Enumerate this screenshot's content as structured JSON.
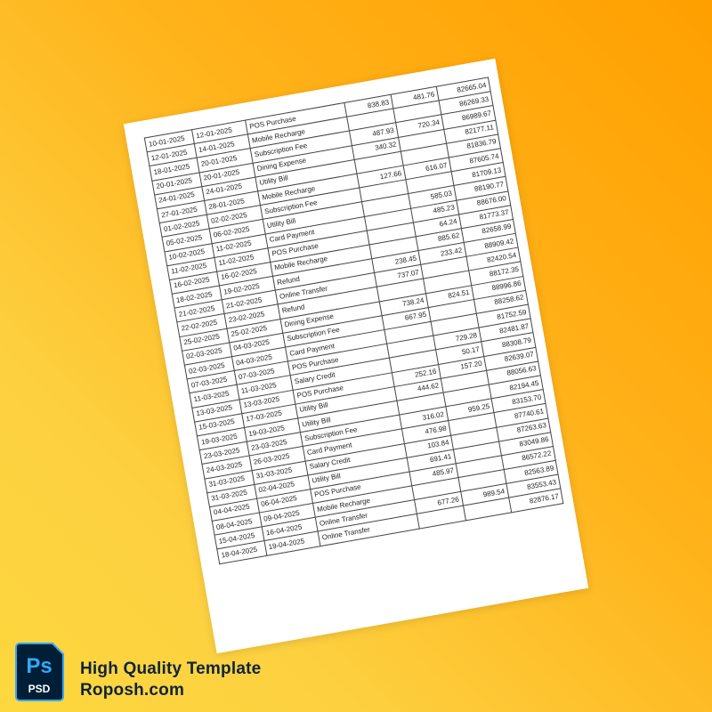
{
  "colors": {
    "bg_top_right": "#ff9f00",
    "bg_bottom_left": "#fdd83e",
    "logo_bg": "#001e36",
    "logo_accent": "#31a8ff",
    "brand_text": "#0d2340"
  },
  "statement": {
    "rows": [
      [
        "10-01-2025",
        "12-01-2025",
        "POS Purchase",
        "838.83",
        "481.76",
        "82665.04"
      ],
      [
        "12-01-2025",
        "14-01-2025",
        "Mobile Recharge",
        "",
        "",
        "86269.33"
      ],
      [
        "18-01-2025",
        "20-01-2025",
        "Subscription Fee",
        "487.93",
        "720.34",
        "86989.67"
      ],
      [
        "20-01-2025",
        "20-01-2025",
        "Dining Expense",
        "340.32",
        "",
        "82177.11"
      ],
      [
        "24-01-2025",
        "24-01-2025",
        "Utility Bill",
        "",
        "",
        "81836.79"
      ],
      [
        "27-01-2025",
        "28-01-2025",
        "Mobile Recharge",
        "127.66",
        "616.07",
        "87605.74"
      ],
      [
        "01-02-2025",
        "02-02-2025",
        "Subscription Fee",
        "",
        "",
        "81709.13"
      ],
      [
        "05-02-2025",
        "06-02-2025",
        "Utility Bill",
        "",
        "585.03",
        "88190.77"
      ],
      [
        "10-02-2025",
        "11-02-2025",
        "Card Payment",
        "",
        "485.23",
        "88676.00"
      ],
      [
        "11-02-2025",
        "11-02-2025",
        "POS Purchase",
        "",
        "64.24",
        "81773.37"
      ],
      [
        "16-02-2025",
        "16-02-2025",
        "Mobile Recharge",
        "",
        "885.62",
        "82658.99"
      ],
      [
        "18-02-2025",
        "19-02-2025",
        "Refund",
        "238.45",
        "233.42",
        "88909.42"
      ],
      [
        "21-02-2025",
        "21-02-2025",
        "Online Transfer",
        "737.07",
        "",
        "82420.54"
      ],
      [
        "22-02-2025",
        "23-02-2025",
        "Refund",
        "",
        "",
        "88172.35"
      ],
      [
        "25-02-2025",
        "25-02-2025",
        "Dining Expense",
        "738.24",
        "824.51",
        "88996.86"
      ],
      [
        "02-03-2025",
        "04-03-2025",
        "Subscription Fee",
        "667.95",
        "",
        "88258.62"
      ],
      [
        "02-03-2025",
        "04-03-2025",
        "Card Payment",
        "",
        "",
        "81752.59"
      ],
      [
        "07-03-2025",
        "07-03-2025",
        "POS Purchase",
        "",
        "729.28",
        "82481.87"
      ],
      [
        "11-03-2025",
        "11-03-2025",
        "Salary Credit",
        "",
        "50.17",
        "88308.79"
      ],
      [
        "13-03-2025",
        "13-03-2025",
        "POS Purchase",
        "252.16",
        "157.20",
        "82639.07"
      ],
      [
        "15-03-2025",
        "17-03-2025",
        "Utility Bill",
        "444.62",
        "",
        "88056.63"
      ],
      [
        "19-03-2025",
        "19-03-2025",
        "Utility Bill",
        "",
        "",
        "82194.45"
      ],
      [
        "23-03-2025",
        "23-03-2025",
        "Subscription Fee",
        "316.02",
        "959.25",
        "83153.70"
      ],
      [
        "24-03-2025",
        "26-03-2025",
        "Card Payment",
        "476.98",
        "",
        "87740.61"
      ],
      [
        "31-03-2025",
        "31-03-2025",
        "Salary Credit",
        "103.84",
        "",
        "87263.63"
      ],
      [
        "31-03-2025",
        "02-04-2025",
        "Utility Bill",
        "691.41",
        "",
        "83049.86"
      ],
      [
        "04-04-2025",
        "06-04-2025",
        "POS Purchase",
        "485.97",
        "",
        "86572.22"
      ],
      [
        "08-04-2025",
        "09-04-2025",
        "Mobile Recharge",
        "",
        "",
        "82563.89"
      ],
      [
        "15-04-2025",
        "16-04-2025",
        "Online Transfer",
        "677.26",
        "989.54",
        "83553.43"
      ],
      [
        "18-04-2025",
        "19-04-2025",
        "Online Transfer",
        "",
        "",
        "82876.17"
      ]
    ]
  },
  "branding": {
    "logo_text": "Ps",
    "logo_subtext": "PSD",
    "line1": "High Quality Template",
    "line2": "Roposh.com"
  }
}
